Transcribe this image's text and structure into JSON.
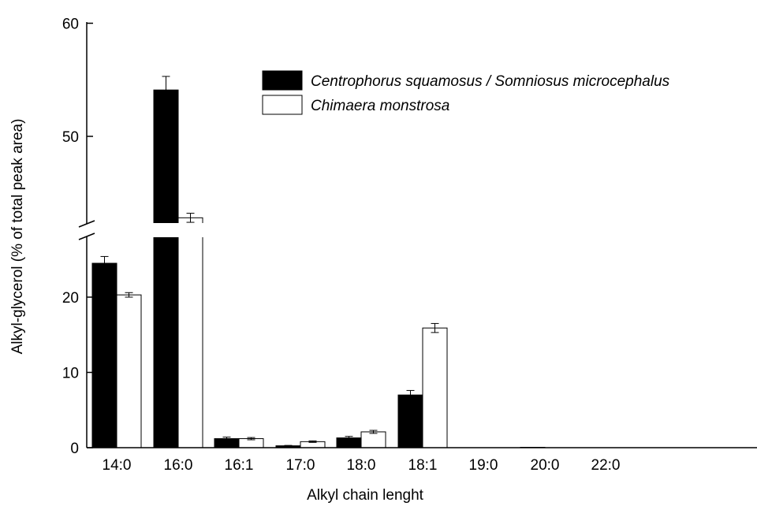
{
  "chart_data": {
    "type": "bar",
    "xlabel": "Alkyl chain lenght",
    "ylabel": "Alkyl-glycerol (% of total peak area)",
    "categories": [
      "14:0",
      "16:0",
      "16:1",
      "17:0",
      "18:0",
      "18:1",
      "19:0",
      "20:0",
      "22:0"
    ],
    "series": [
      {
        "name": "Centrophorus squamosus / Somniosus microcephalus",
        "color": "#000000",
        "values": [
          24.5,
          54.1,
          1.2,
          0.25,
          1.3,
          7.0,
          0.0,
          0.05,
          0.0
        ],
        "errors": [
          0.9,
          1.2,
          0.2,
          0.05,
          0.2,
          0.6,
          0.0,
          0.0,
          0.0
        ]
      },
      {
        "name": "Chimaera monstrosa",
        "color": "#ffffff",
        "values": [
          20.3,
          42.8,
          1.2,
          0.8,
          2.1,
          15.9,
          0.0,
          0.0,
          0.0
        ],
        "errors": [
          0.3,
          0.4,
          0.15,
          0.1,
          0.2,
          0.6,
          0.0,
          0.0,
          0.0
        ]
      }
    ],
    "y_axis_break": {
      "lower_range": [
        0,
        26
      ],
      "upper_range": [
        42,
        60
      ]
    },
    "y_ticks": [
      0,
      10,
      20,
      50,
      60
    ],
    "grid": false,
    "legend_position": "top-right"
  }
}
